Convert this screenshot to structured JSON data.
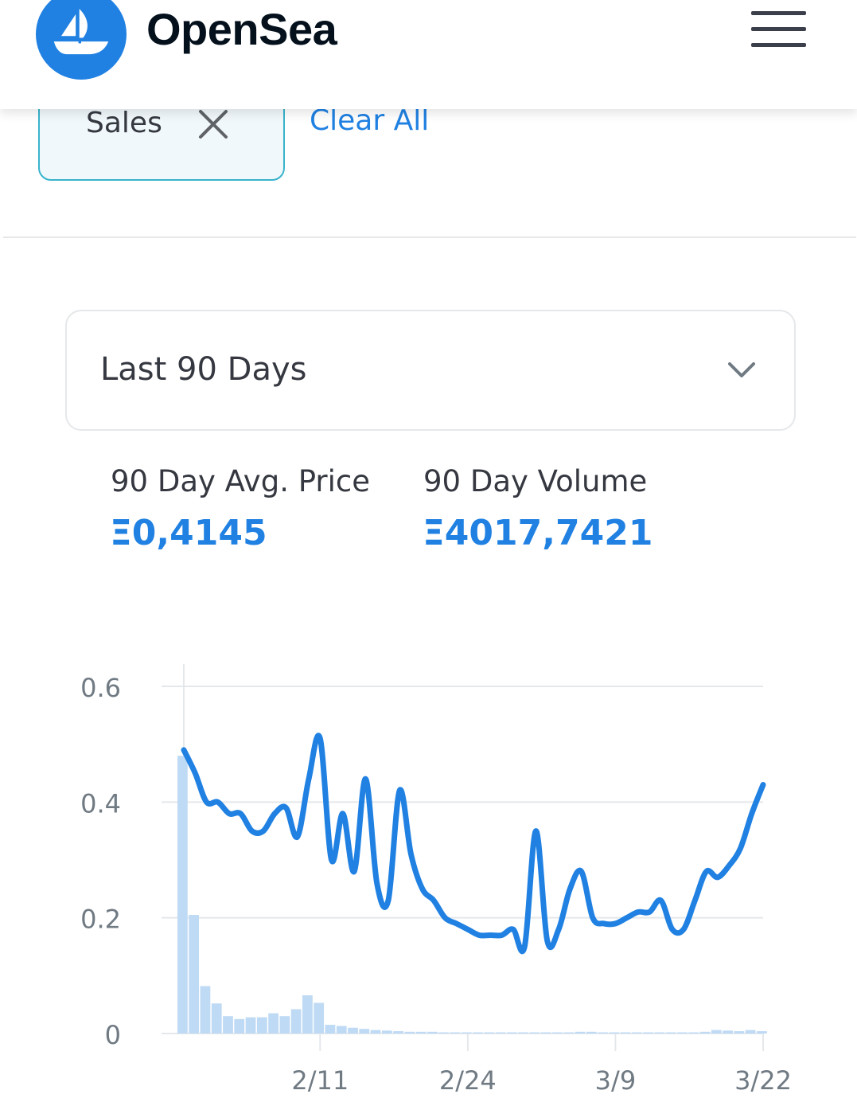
{
  "header": {
    "brand": "OpenSea",
    "logo_icon": "opensea-boat-logo",
    "menu_icon": "hamburger-menu-icon"
  },
  "filters": {
    "chip_label": "Sales",
    "chip_remove_icon": "close-icon",
    "clear_all": "Clear All"
  },
  "period": {
    "selected": "Last 90 Days",
    "dropdown_icon": "chevron-down-icon"
  },
  "stats": {
    "avg_price_label": "90 Day Avg. Price",
    "avg_price_value": "Ξ0,4145",
    "volume_label": "90 Day Volume",
    "volume_value": "Ξ4017,7421"
  },
  "colors": {
    "accent": "#2081e2",
    "line": "#2081e2",
    "bars": "#bfdaf4",
    "chip_border": "#38b3cc"
  },
  "chart_data": {
    "type": "line",
    "title": "",
    "xlabel": "",
    "ylabel": "",
    "ylim": [
      0,
      0.6
    ],
    "yticks": [
      0,
      0.2,
      0.4,
      0.6
    ],
    "ytick_labels": [
      "0",
      "0.2",
      "0.4",
      "0.6"
    ],
    "xticks": [
      "2/11",
      "2/24",
      "3/9",
      "3/22"
    ],
    "grid": true,
    "legend": "none",
    "x": [
      "1/30",
      "1/31",
      "2/1",
      "2/2",
      "2/3",
      "2/4",
      "2/5",
      "2/6",
      "2/7",
      "2/8",
      "2/9",
      "2/10",
      "2/11",
      "2/12",
      "2/13",
      "2/14",
      "2/15",
      "2/16",
      "2/17",
      "2/18",
      "2/19",
      "2/20",
      "2/21",
      "2/22",
      "2/23",
      "2/24",
      "2/25",
      "2/26",
      "2/27",
      "2/28",
      "3/1",
      "3/2",
      "3/3",
      "3/4",
      "3/5",
      "3/6",
      "3/7",
      "3/8",
      "3/9",
      "3/10",
      "3/11",
      "3/12",
      "3/13",
      "3/14",
      "3/15",
      "3/16",
      "3/17",
      "3/18",
      "3/19",
      "3/20",
      "3/21",
      "3/22"
    ],
    "series": [
      {
        "kind": "line",
        "values": [
          0.49,
          0.45,
          0.4,
          0.4,
          0.38,
          0.38,
          0.35,
          0.35,
          0.38,
          0.39,
          0.34,
          0.44,
          0.51,
          0.3,
          0.38,
          0.28,
          0.44,
          0.26,
          0.23,
          0.42,
          0.31,
          0.25,
          0.23,
          0.2,
          0.19,
          0.18,
          0.17,
          0.17,
          0.17,
          0.18,
          0.15,
          0.35,
          0.16,
          0.18,
          0.25,
          0.28,
          0.2,
          0.19,
          0.19,
          0.2,
          0.21,
          0.21,
          0.23,
          0.18,
          0.18,
          0.23,
          0.28,
          0.27,
          0.29,
          0.32,
          0.38,
          0.43
        ]
      },
      {
        "kind": "bar",
        "values": [
          0.48,
          0.205,
          0.082,
          0.052,
          0.03,
          0.025,
          0.028,
          0.028,
          0.035,
          0.03,
          0.042,
          0.066,
          0.053,
          0.015,
          0.013,
          0.01,
          0.008,
          0.006,
          0.005,
          0.004,
          0.003,
          0.003,
          0.003,
          0.002,
          0.002,
          0.002,
          0.002,
          0.002,
          0.002,
          0.002,
          0.002,
          0.002,
          0.002,
          0.002,
          0.002,
          0.003,
          0.003,
          0.002,
          0.002,
          0.002,
          0.002,
          0.002,
          0.002,
          0.002,
          0.002,
          0.002,
          0.003,
          0.006,
          0.005,
          0.004,
          0.006,
          0.004
        ]
      }
    ]
  }
}
